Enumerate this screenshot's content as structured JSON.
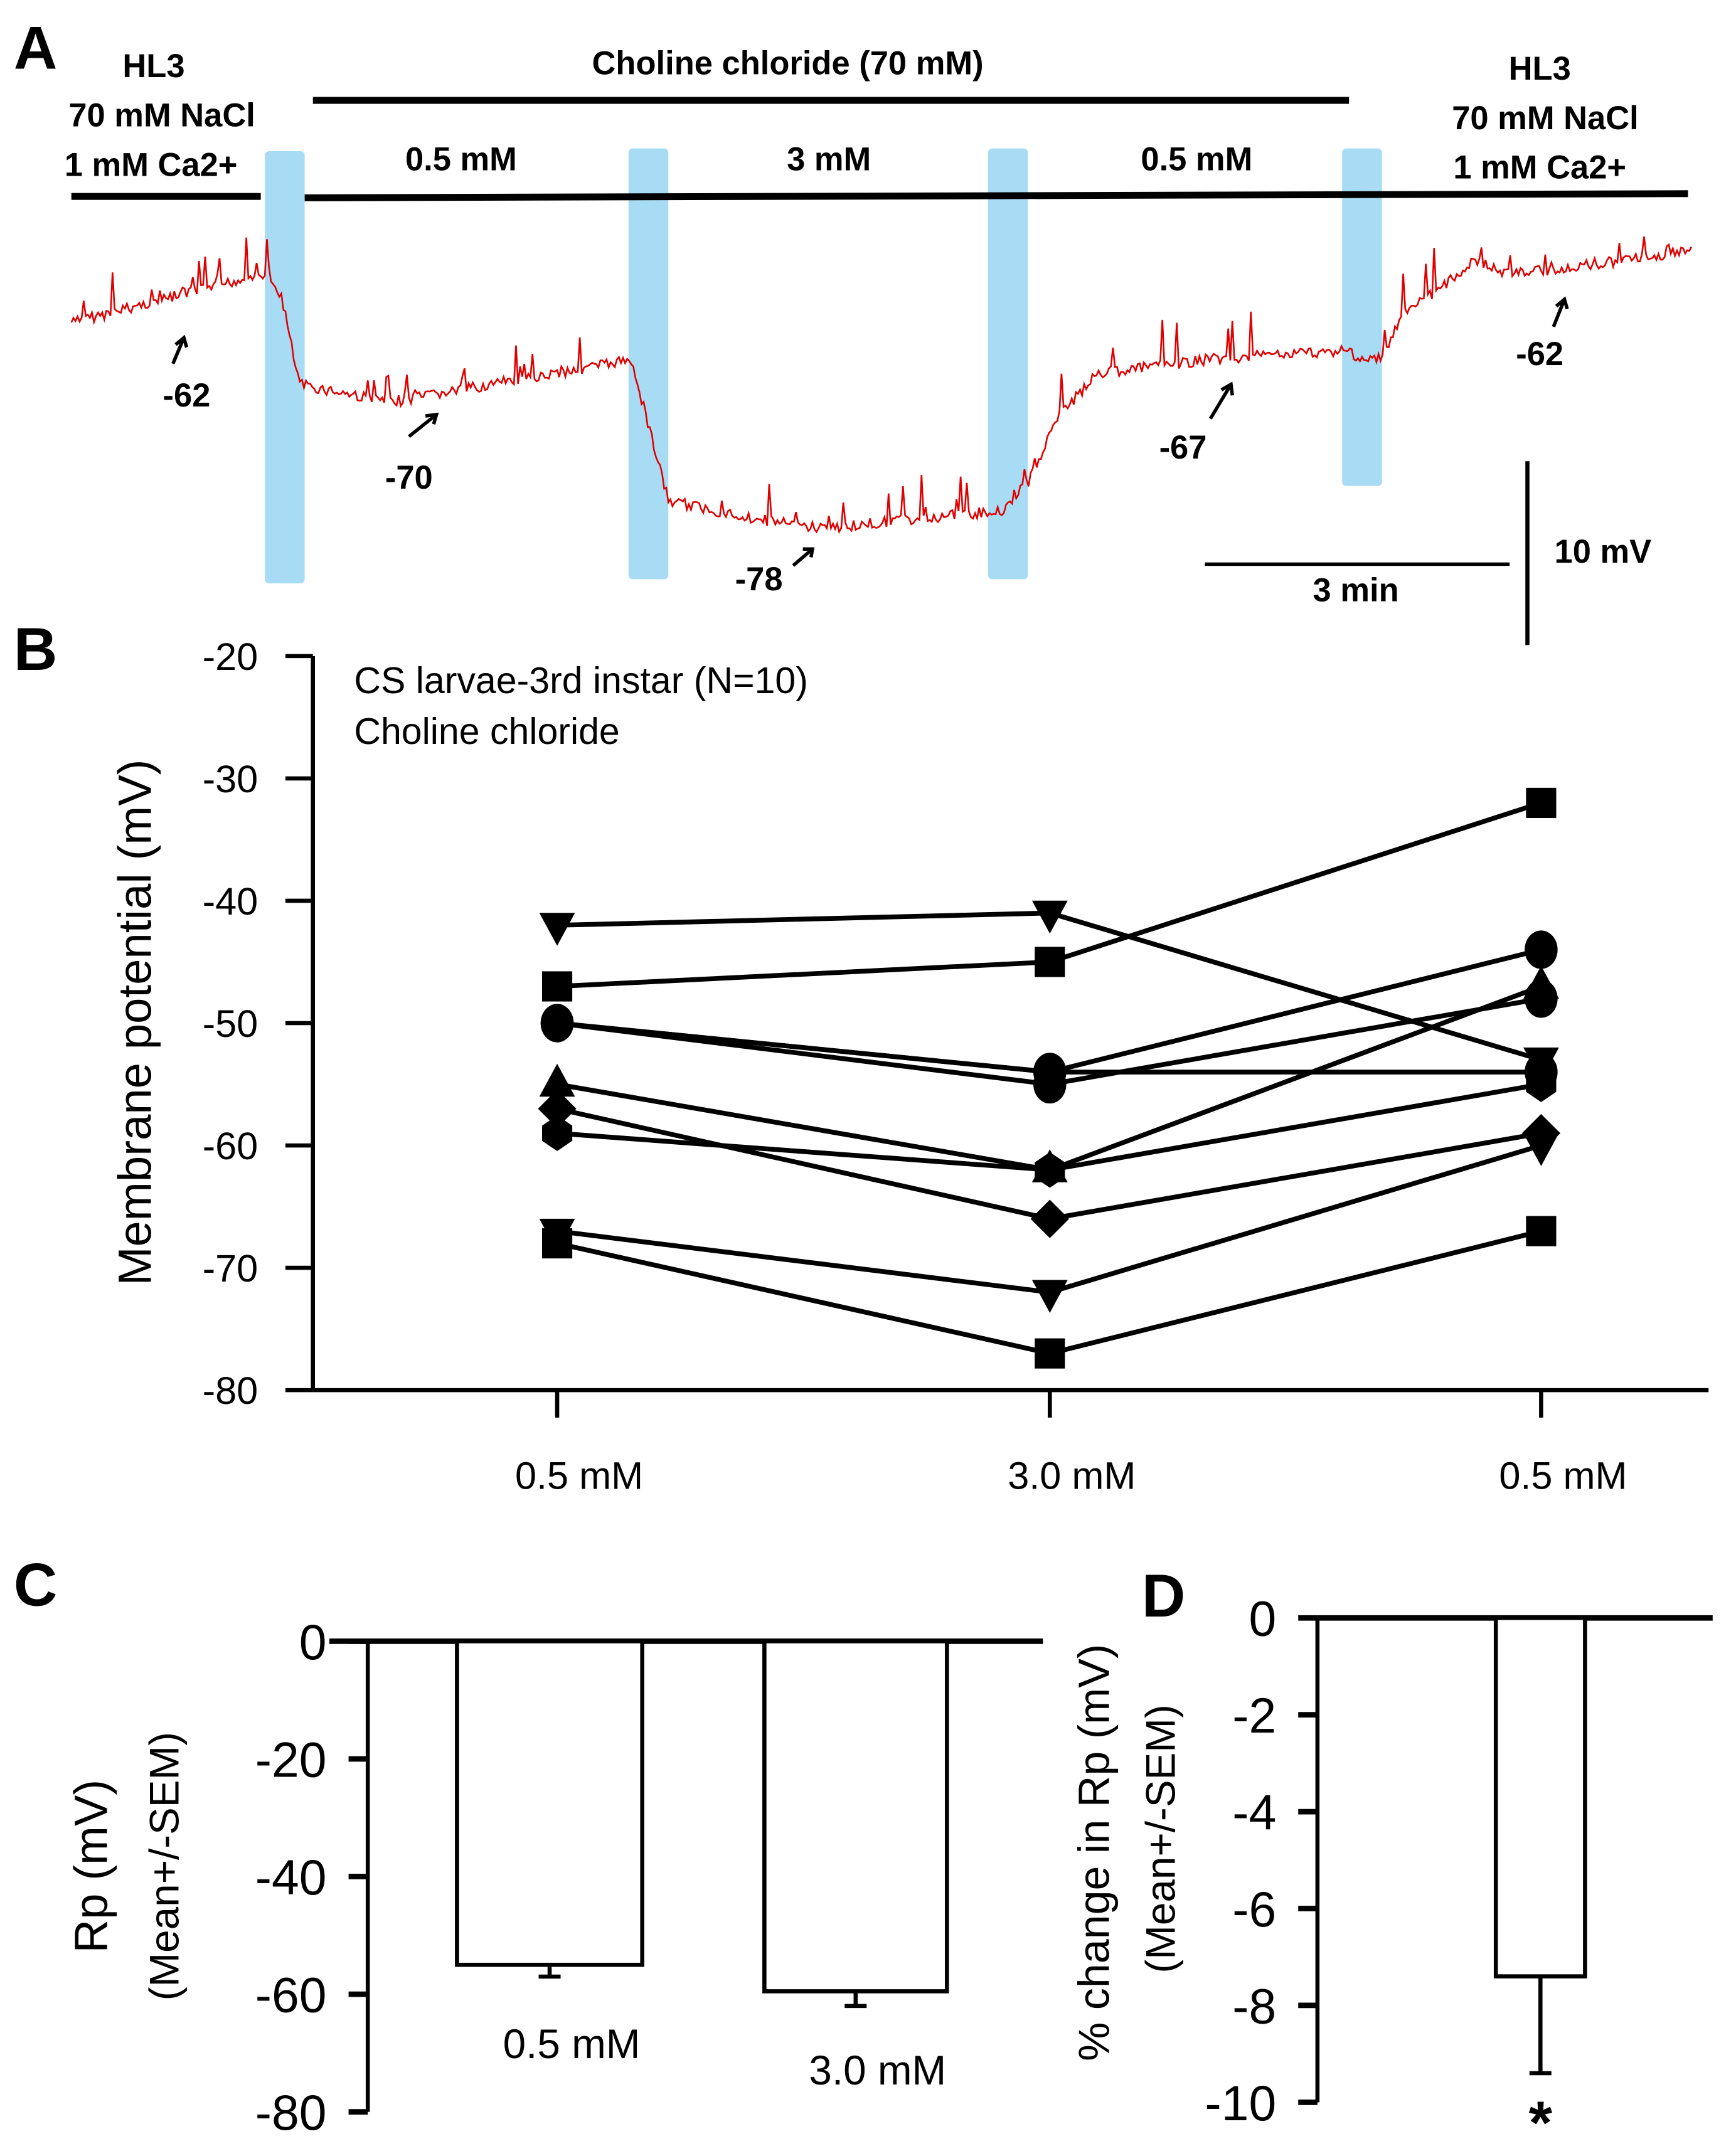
{
  "panel_labels": {
    "a": "A",
    "b": "B",
    "c": "C",
    "d": "D"
  },
  "panel_a": {
    "left_solution": [
      "HL3",
      "70 mM NaCl",
      "1 mM Ca2+"
    ],
    "right_solution": [
      "HL3",
      "70 mM NaCl",
      "1 mM Ca2+"
    ],
    "choline_label": "Choline chloride (70 mM)",
    "segments": [
      "0.5 mM",
      "3 mM",
      "0.5 mM"
    ],
    "potential_labels": [
      "-62",
      "-70",
      "-78",
      "-67",
      "-62"
    ],
    "scale_time": "3 min",
    "scale_voltage": "10 mV",
    "trace_color": "#e00000",
    "washout_color": "#a8dcf5"
  },
  "chart_data": [
    {
      "type": "line",
      "title": "CS larvae-3rd instar (N=10)",
      "subtitle": "Choline chloride",
      "ylabel": "Membrane potential (mV)",
      "xlabel": "",
      "categories": [
        "0.5 mM",
        "3.0 mM",
        "0.5 mM"
      ],
      "ylim": [
        -80,
        -20
      ],
      "yticks": [
        "-20",
        "-30",
        "-40",
        "-50",
        "-60",
        "-70",
        "-80"
      ],
      "series": [
        {
          "marker": "triangle-down",
          "values": [
            -42,
            -41,
            -53
          ]
        },
        {
          "marker": "square",
          "values": [
            -47,
            -45,
            -32
          ]
        },
        {
          "marker": "circle",
          "values": [
            -50,
            -54,
            -44
          ]
        },
        {
          "marker": "circle",
          "values": [
            -50,
            -55,
            -48
          ]
        },
        {
          "marker": "triangle-up",
          "values": [
            -55,
            -62,
            -47
          ]
        },
        {
          "marker": "diamond",
          "values": [
            -57,
            -66,
            -59
          ]
        },
        {
          "marker": "hexagon",
          "values": [
            -59,
            -62,
            -55
          ]
        },
        {
          "marker": "triangle-down",
          "values": [
            -67,
            -72,
            -60
          ]
        },
        {
          "marker": "square",
          "values": [
            -68,
            -77,
            -67
          ]
        },
        {
          "marker": "circle",
          "values": [
            -50,
            -54,
            -54
          ]
        }
      ]
    },
    {
      "type": "bar",
      "ylabel": "Rp (mV)",
      "ylabel2": "(Mean+/-SEM)",
      "categories": [
        "0.5 mM",
        "3.0 mM"
      ],
      "values": [
        -55,
        -59.5
      ],
      "errors": [
        2,
        2.5
      ],
      "ylim": [
        -80,
        0
      ],
      "yticks": [
        "0",
        "-20",
        "-40",
        "-60",
        "-80"
      ]
    },
    {
      "type": "bar",
      "ylabel": "% change in Rp (mV)",
      "ylabel2": "(Mean+/-SEM)",
      "categories": [
        ""
      ],
      "values": [
        -7.4
      ],
      "errors": [
        2.0
      ],
      "annotation": "*",
      "ylim": [
        -10,
        0
      ],
      "yticks": [
        "0",
        "-2",
        "-4",
        "-6",
        "-8",
        "-10"
      ]
    }
  ]
}
